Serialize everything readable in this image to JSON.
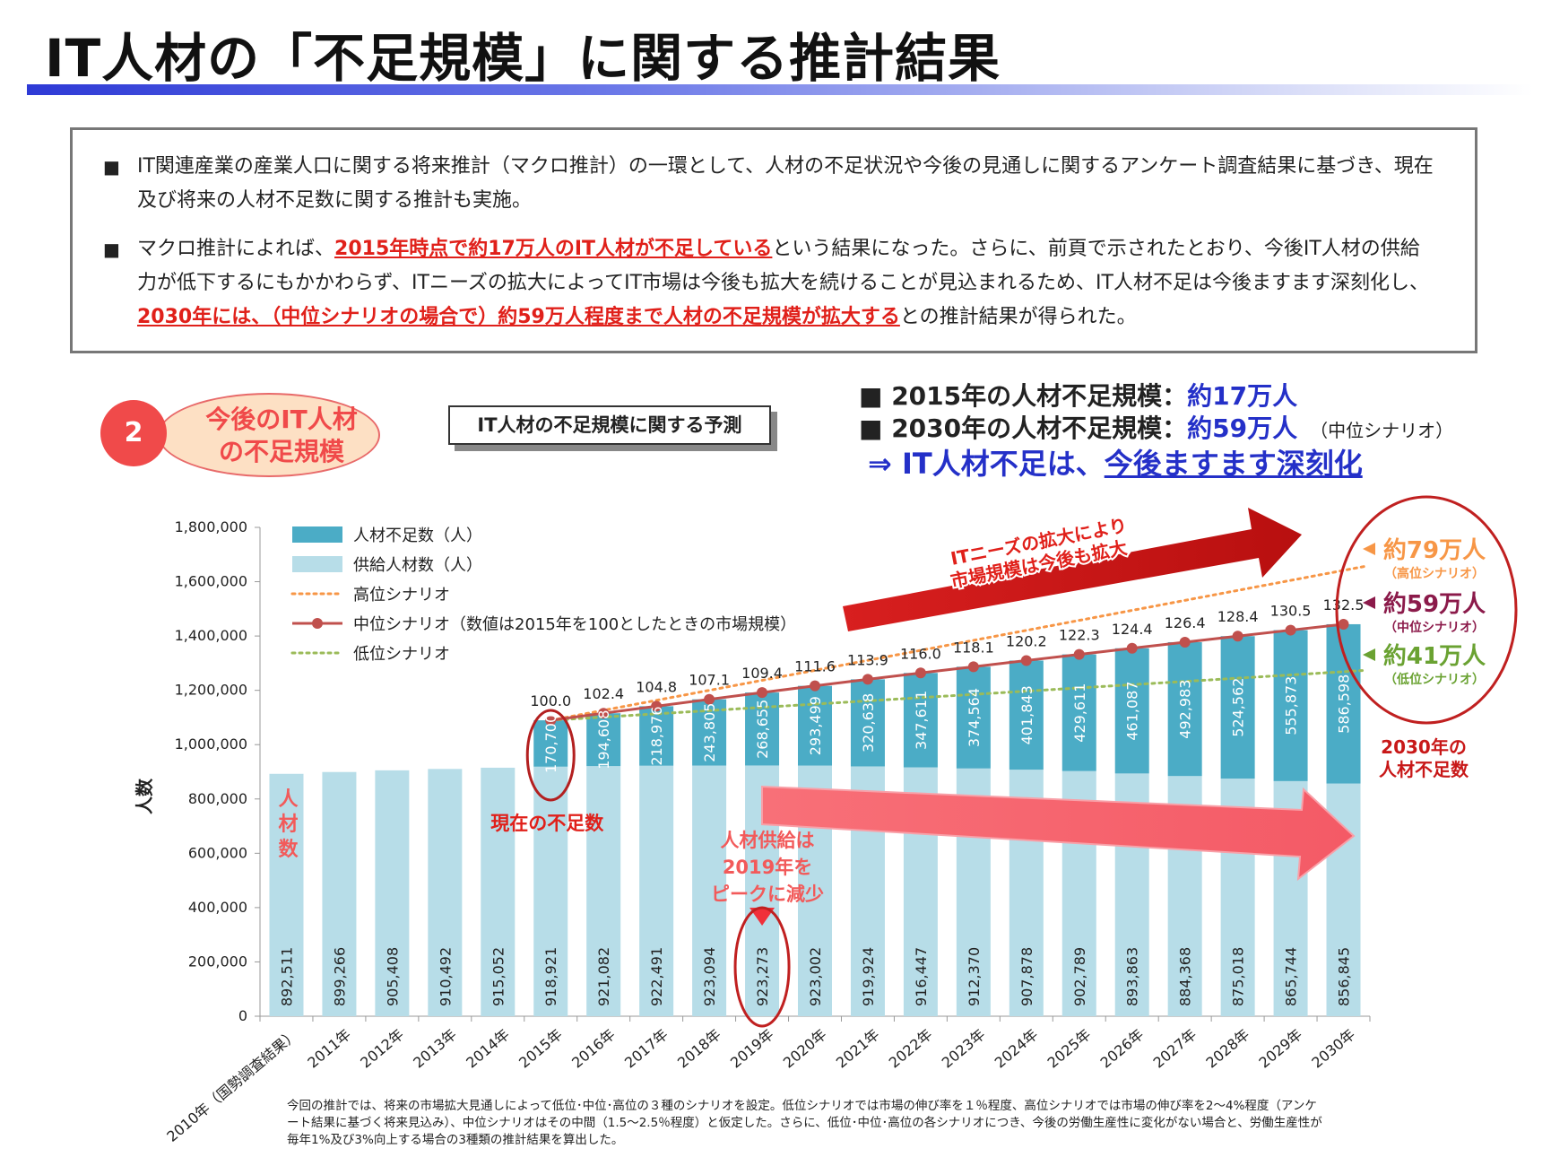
{
  "page": {
    "title": "IT人材の「不足規模」に関する推計結果"
  },
  "summary": {
    "bullet_mark": "■",
    "bullet1": "IT関連産業の産業人口に関する将来推計（マクロ推計）の一環として、人材の不足状況や今後の見通しに関するアンケート調査結果に基づき、現在及び将来の人材不足数に関する推計も実施。",
    "bullet2_a": "マクロ推計によれば、",
    "bullet2_em1": "2015年時点で約17万人のIT人材が不足している",
    "bullet2_b": "という結果になった。さらに、前頁で示されたとおり、今後IT人材の供給力が低下するにもかかわらず、ITニーズの拡大によってIT市場は今後も拡大を続けることが見込まれるため、IT人材不足は今後ますます深刻化し、",
    "bullet2_em2": "2030年には、（中位シナリオの場合で）約59万人程度まで人材の不足規模が拡大する",
    "bullet2_c": "との推計結果が得られた。"
  },
  "section": {
    "number": "2",
    "label_line1": "今後のIT人材",
    "label_line2": "の不足規模"
  },
  "chart_box_title": "IT人材の不足規模に関する予測",
  "headlines": {
    "line1_label": "■ 2015年の人材不足規模：",
    "line1_value": "約17万人",
    "line2_label": "■ 2030年の人材不足規模：",
    "line2_value": "約59万人",
    "line2_note": "（中位シナリオ）",
    "conclusion_a": "⇒ IT人材不足は、",
    "conclusion_b": "今後ますます深刻化"
  },
  "colors": {
    "shortage": "#4bacc6",
    "supply": "#b7dde8",
    "high": "#f79646",
    "mid": "#c0504d",
    "low": "#9bbb59",
    "accent_red": "#e0201a",
    "title_blue": "#2430c8"
  },
  "annotations": {
    "ninzai_su": "人材数",
    "current_shortage": "現在の不足数",
    "supply_peak": [
      "人材供給は",
      "2019年を",
      "ピークに減少"
    ],
    "market_arrow": [
      "ITニーズの拡大により",
      "市場規模は今後も拡大"
    ],
    "high_value": "約79万人",
    "high_label": "（高位シナリオ）",
    "mid_value": "約59万人",
    "mid_label": "（中位シナリオ）",
    "low_value": "約41万人",
    "low_label": "（低位シナリオ）",
    "shortage_2030": [
      "2030年の",
      "人材不足数"
    ]
  },
  "footnote": "今回の推計では、将来の市場拡大見通しによって低位･中位･高位の３種のシナリオを設定。低位シナリオでは市場の伸び率を１％程度、高位シナリオでは市場の伸び率を2～4%程度（アンケート結果に基づく将来見込み）、中位シナリオはその中間（1.5～2.5％程度）と仮定した。さらに、低位･中位･高位の各シナリオにつき、今後の労働生産性に変化がない場合と、労働生産性が毎年1%及び3%向上する場合の3種類の推計結果を算出した。",
  "chart_data": {
    "type": "bar",
    "stacked": true,
    "ylabel": "人数",
    "ylim": [
      0,
      1800000
    ],
    "yticks": [
      "0",
      "200,000",
      "400,000",
      "600,000",
      "800,000",
      "1,000,000",
      "1,200,000",
      "1,400,000",
      "1,600,000",
      "1,800,000"
    ],
    "ytick_values": [
      0,
      200000,
      400000,
      600000,
      800000,
      1000000,
      1200000,
      1400000,
      1600000,
      1800000
    ],
    "categories": [
      "2010年（国勢調査結果）",
      "2011年",
      "2012年",
      "2013年",
      "2014年",
      "2015年",
      "2016年",
      "2017年",
      "2018年",
      "2019年",
      "2020年",
      "2021年",
      "2022年",
      "2023年",
      "2024年",
      "2025年",
      "2026年",
      "2027年",
      "2028年",
      "2029年",
      "2030年"
    ],
    "series": [
      {
        "name": "供給人材数（人）",
        "kind": "bar",
        "values": [
          892511,
          899266,
          905408,
          910492,
          915052,
          918921,
          921082,
          922491,
          923094,
          923273,
          923002,
          919924,
          916447,
          912370,
          907878,
          902789,
          893863,
          884368,
          875018,
          865744,
          856845
        ],
        "labels": [
          "892,511",
          "899,266",
          "905,408",
          "910,492",
          "915,052",
          "918,921",
          "921,082",
          "922,491",
          "923,094",
          "923,273",
          "923,002",
          "919,924",
          "916,447",
          "912,370",
          "907,878",
          "902,789",
          "893,863",
          "884,368",
          "875,018",
          "865,744",
          "856,845"
        ]
      },
      {
        "name": "人材不足数（人）",
        "kind": "bar",
        "values": [
          null,
          null,
          null,
          null,
          null,
          170700,
          194608,
          218976,
          243805,
          268655,
          293499,
          320638,
          347611,
          374564,
          401843,
          429611,
          461087,
          492983,
          524562,
          555873,
          586598
        ],
        "labels": [
          "",
          "",
          "",
          "",
          "",
          "170,700",
          "194,608",
          "218,976",
          "243,805",
          "268,655",
          "293,499",
          "320,638",
          "347,611",
          "374,564",
          "401,843",
          "429,611",
          "461,087",
          "492,983",
          "524,562",
          "555,873",
          "586,598"
        ]
      },
      {
        "name": "高位シナリオ",
        "kind": "line",
        "values": [
          null,
          null,
          null,
          null,
          null,
          1089621,
          null,
          null,
          null,
          null,
          null,
          null,
          null,
          null,
          null,
          null,
          null,
          null,
          null,
          null,
          1650000
        ]
      },
      {
        "name": "中位シナリオ（数値は2015年を100としたときの市場規模）",
        "kind": "line-markers",
        "values": [
          null,
          null,
          null,
          null,
          null,
          1089621,
          1115690,
          1141467,
          1166899,
          1191928,
          1216501,
          1240562,
          1264058,
          1286934,
          1309721,
          1332400,
          1354950,
          1377351,
          1399580,
          1421617,
          1443443
        ],
        "index_labels": [
          "",
          "",
          "",
          "",
          "",
          "100.0",
          "102.4",
          "104.8",
          "107.1",
          "109.4",
          "111.6",
          "113.9",
          "116.0",
          "118.1",
          "120.2",
          "122.3",
          "124.4",
          "126.4",
          "128.4",
          "130.5",
          "132.5"
        ]
      },
      {
        "name": "低位シナリオ",
        "kind": "line",
        "values": [
          null,
          null,
          null,
          null,
          null,
          1089621,
          null,
          null,
          null,
          null,
          null,
          null,
          null,
          null,
          null,
          null,
          null,
          null,
          null,
          null,
          1266845
        ]
      }
    ],
    "legend": [
      "人材不足数（人）",
      "供給人材数（人）",
      "高位シナリオ",
      "中位シナリオ（数値は2015年を100としたときの市場規模）",
      "低位シナリオ"
    ],
    "legend_position": "top-left"
  }
}
